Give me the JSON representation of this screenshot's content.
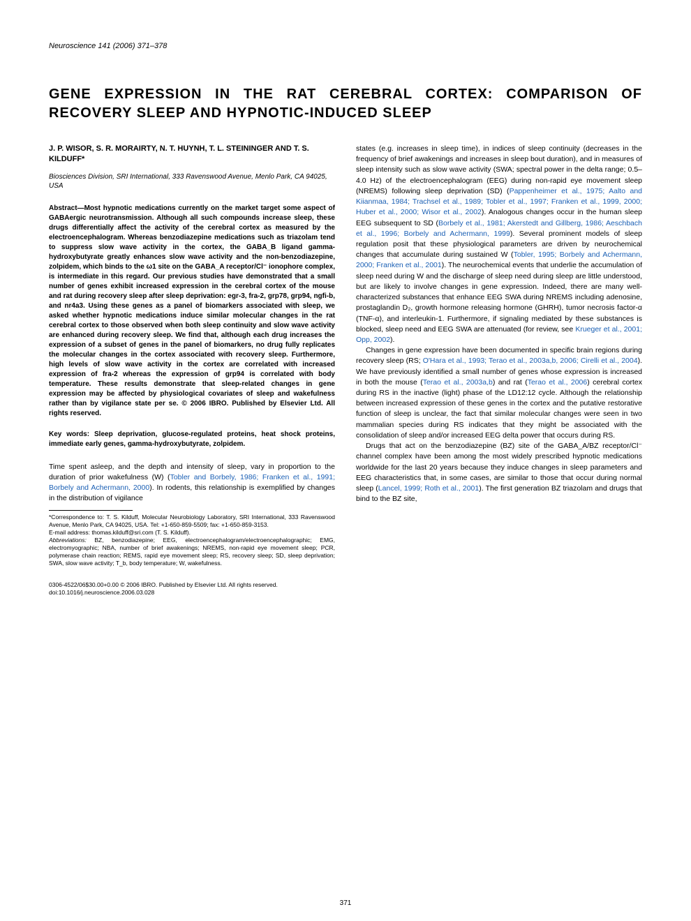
{
  "journal_header": "Neuroscience 141 (2006) 371–378",
  "title": "GENE EXPRESSION IN THE RAT CEREBRAL CORTEX: COMPARISON OF RECOVERY SLEEP AND HYPNOTIC-INDUCED SLEEP",
  "authors": "J. P. WISOR, S. R. MORAIRTY, N. T. HUYNH, T. L. STEININGER AND T. S. KILDUFF*",
  "affiliation": "Biosciences Division, SRI International, 333 Ravenswood Avenue, Menlo Park, CA 94025, USA",
  "abstract_label": "Abstract—",
  "abstract_body": "Most hypnotic medications currently on the market target some aspect of GABAergic neurotransmission. Although all such compounds increase sleep, these drugs differentially affect the activity of the cerebral cortex as measured by the electroencephalogram. Whereas benzodiazepine medications such as triazolam tend to suppress slow wave activity in the cortex, the GABA_B ligand gamma-hydroxybutyrate greatly enhances slow wave activity and the non-benzodiazepine, zolpidem, which binds to the ω1 site on the GABA_A receptor/Cl⁻ ionophore complex, is intermediate in this regard. Our previous studies have demonstrated that a small number of genes exhibit increased expression in the cerebral cortex of the mouse and rat during recovery sleep after sleep deprivation: egr-3, fra-2, grp78, grp94, ngfi-b, and nr4a3. Using these genes as a panel of biomarkers associated with sleep, we asked whether hypnotic medications induce similar molecular changes in the rat cerebral cortex to those observed when both sleep continuity and slow wave activity are enhanced during recovery sleep. We find that, although each drug increases the expression of a subset of genes in the panel of biomarkers, no drug fully replicates the molecular changes in the cortex associated with recovery sleep. Furthermore, high levels of slow wave activity in the cortex are correlated with increased expression of fra-2 whereas the expression of grp94 is correlated with body temperature. These results demonstrate that sleep-related changes in gene expression may be affected by physiological covariates of sleep and wakefulness rather than by vigilance state per se. © 2006 IBRO. Published by Elsevier Ltd. All rights reserved.",
  "keywords_label": "Key words: ",
  "keywords_body": "Sleep deprivation, glucose-regulated proteins, heat shock proteins, immediate early genes, gamma-hydroxybutyrate, zolpidem.",
  "body_p1_a": "Time spent asleep, and the depth and intensity of sleep, vary in proportion to the duration of prior wakefulness (W) (",
  "body_p1_ref1": "Tobler and Borbely, 1986; Franken et al., 1991; Borbely and Achermann, 2000",
  "body_p1_b": "). In rodents, this relationship is exemplified by changes in the distribution of vigilance",
  "footnote_corr": "*Correspondence to: T. S. Kilduff, Molecular Neurobiology Laboratory, SRI International, 333 Ravenswood Avenue, Menlo Park, CA 94025, USA. Tel: +1-650-859-5509; fax: +1-650-859-3153.",
  "footnote_email": "E-mail address: thomas.kilduff@sri.com (T. S. Kilduff).",
  "footnote_abbr_label": "Abbreviations: ",
  "footnote_abbr_body": "BZ, benzodiazepine; EEG, electroencephalogram/electroencephalographic; EMG, electromyographic; NBA, number of brief awakenings; NREMS, non-rapid eye movement sleep; PCR, polymerase chain reaction; REMS, rapid eye movement sleep; RS, recovery sleep; SD, sleep deprivation; SWA, slow wave activity; T_b, body temperature; W, wakefulness.",
  "col2_p1_a": "states (e.g. increases in sleep time), in indices of sleep continuity (decreases in the frequency of brief awakenings and increases in sleep bout duration), and in measures of sleep intensity such as slow wave activity (SWA; spectral power in the delta range; 0.5–4.0 Hz) of the electroencephalogram (EEG) during non-rapid eye movement sleep (NREMS) following sleep deprivation (SD) (",
  "col2_p1_ref1": "Pappenheimer et al., 1975; Aalto and Kiianmaa, 1984; Trachsel et al., 1989; Tobler et al., 1997; Franken et al., 1999, 2000; Huber et al., 2000; Wisor et al., 2002",
  "col2_p1_b": "). Analogous changes occur in the human sleep EEG subsequent to SD (",
  "col2_p1_ref2": "Borbely et al., 1981; Akerstedt and Gillberg, 1986; Aeschbach et al., 1996; Borbely and Achermann, 1999",
  "col2_p1_c": "). Several prominent models of sleep regulation posit that these physiological parameters are driven by neurochemical changes that accumulate during sustained W (",
  "col2_p1_ref3": "Tobler, 1995; Borbely and Achermann, 2000; Franken et al., 2001",
  "col2_p1_d": "). The neurochemical events that underlie the accumulation of sleep need during W and the discharge of sleep need during sleep are little understood, but are likely to involve changes in gene expression. Indeed, there are many well-characterized substances that enhance EEG SWA during NREMS including adenosine, prostaglandin D₂, growth hormone releasing hormone (GHRH), tumor necrosis factor-α (TNF-α), and interleukin-1. Furthermore, if signaling mediated by these substances is blocked, sleep need and EEG SWA are attenuated (for review, see ",
  "col2_p1_ref4": "Krueger et al., 2001; Opp, 2002",
  "col2_p1_e": ").",
  "col2_p2_a": "Changes in gene expression have been documented in specific brain regions during recovery sleep (RS; ",
  "col2_p2_ref1": "O'Hara et al., 1993; Terao et al., 2003a,b, 2006; Cirelli et al., 2004",
  "col2_p2_b": "). We have previously identified a small number of genes whose expression is increased in both the mouse (",
  "col2_p2_ref2": "Terao et al., 2003a,b",
  "col2_p2_c": ") and rat (",
  "col2_p2_ref3": "Terao et al., 2006",
  "col2_p2_d": ") cerebral cortex during RS in the inactive (light) phase of the LD12:12 cycle. Although the relationship between increased expression of these genes in the cortex and the putative restorative function of sleep is unclear, the fact that similar molecular changes were seen in two mammalian species during RS indicates that they might be associated with the consolidation of sleep and/or increased EEG delta power that occurs during RS.",
  "col2_p3_a": "Drugs that act on the benzodiazepine (BZ) site of the GABA_A/BZ receptor/Cl⁻ channel complex have been among the most widely prescribed hypnotic medications worldwide for the last 20 years because they induce changes in sleep parameters and EEG characteristics that, in some cases, are similar to those that occur during normal sleep (",
  "col2_p3_ref1": "Lancel, 1999; Roth et al., 2001",
  "col2_p3_b": "). The first generation BZ triazolam and drugs that bind to the BZ site,",
  "copyright_line": "0306-4522/06$30.00+0.00 © 2006 IBRO. Published by Elsevier Ltd. All rights reserved.",
  "doi_line": "doi:10.1016/j.neuroscience.2006.03.028",
  "page_number": "371"
}
